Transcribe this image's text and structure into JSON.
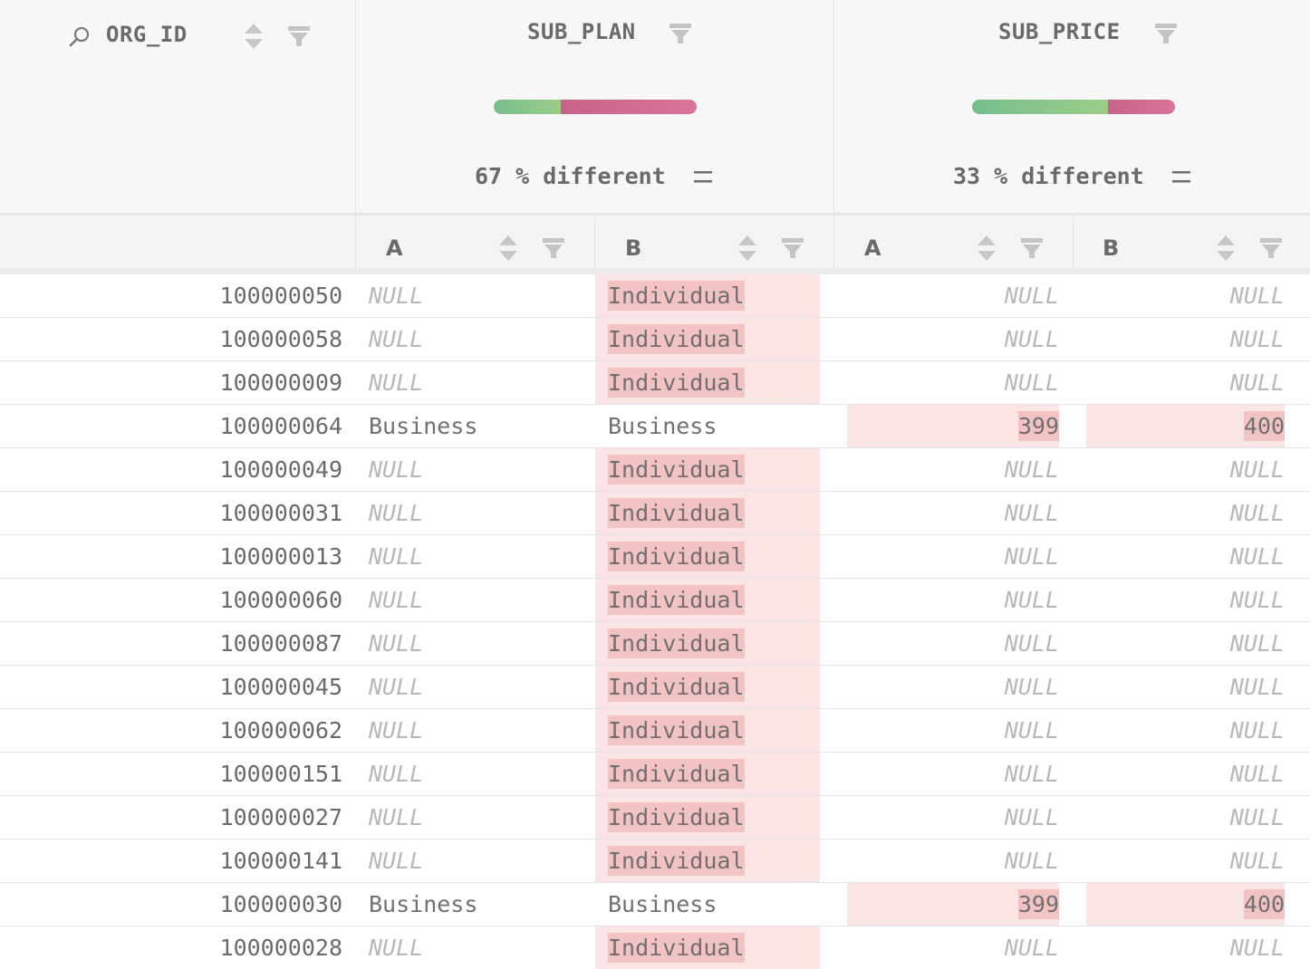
{
  "columns": {
    "key": {
      "name": "ORG_ID"
    },
    "plan": {
      "name": "SUB_PLAN",
      "diff_text": "67 % different",
      "same_fraction": 0.33,
      "diff_fraction": 0.67
    },
    "price": {
      "name": "SUB_PRICE",
      "diff_text": "33 % different",
      "same_fraction": 0.67,
      "diff_fraction": 0.33
    }
  },
  "sub_headers": {
    "a": "A",
    "b": "B"
  },
  "colors": {
    "same": "#8cc68b",
    "diff": "#d06a92",
    "highlight_bg": "#fbe4e4",
    "highlight_mark": "#f3c3c3"
  },
  "rows": [
    {
      "id": "100000050",
      "plan_a": "NULL",
      "plan_b": "Individual",
      "price_a": "NULL",
      "price_b": "NULL"
    },
    {
      "id": "100000058",
      "plan_a": "NULL",
      "plan_b": "Individual",
      "price_a": "NULL",
      "price_b": "NULL"
    },
    {
      "id": "100000009",
      "plan_a": "NULL",
      "plan_b": "Individual",
      "price_a": "NULL",
      "price_b": "NULL"
    },
    {
      "id": "100000064",
      "plan_a": "Business",
      "plan_b": "Business",
      "price_a": "399",
      "price_b": "400"
    },
    {
      "id": "100000049",
      "plan_a": "NULL",
      "plan_b": "Individual",
      "price_a": "NULL",
      "price_b": "NULL"
    },
    {
      "id": "100000031",
      "plan_a": "NULL",
      "plan_b": "Individual",
      "price_a": "NULL",
      "price_b": "NULL"
    },
    {
      "id": "100000013",
      "plan_a": "NULL",
      "plan_b": "Individual",
      "price_a": "NULL",
      "price_b": "NULL"
    },
    {
      "id": "100000060",
      "plan_a": "NULL",
      "plan_b": "Individual",
      "price_a": "NULL",
      "price_b": "NULL"
    },
    {
      "id": "100000087",
      "plan_a": "NULL",
      "plan_b": "Individual",
      "price_a": "NULL",
      "price_b": "NULL"
    },
    {
      "id": "100000045",
      "plan_a": "NULL",
      "plan_b": "Individual",
      "price_a": "NULL",
      "price_b": "NULL"
    },
    {
      "id": "100000062",
      "plan_a": "NULL",
      "plan_b": "Individual",
      "price_a": "NULL",
      "price_b": "NULL"
    },
    {
      "id": "100000151",
      "plan_a": "NULL",
      "plan_b": "Individual",
      "price_a": "NULL",
      "price_b": "NULL"
    },
    {
      "id": "100000027",
      "plan_a": "NULL",
      "plan_b": "Individual",
      "price_a": "NULL",
      "price_b": "NULL"
    },
    {
      "id": "100000141",
      "plan_a": "NULL",
      "plan_b": "Individual",
      "price_a": "NULL",
      "price_b": "NULL"
    },
    {
      "id": "100000030",
      "plan_a": "Business",
      "plan_b": "Business",
      "price_a": "399",
      "price_b": "400"
    },
    {
      "id": "100000028",
      "plan_a": "NULL",
      "plan_b": "Individual",
      "price_a": "NULL",
      "price_b": "NULL"
    }
  ]
}
